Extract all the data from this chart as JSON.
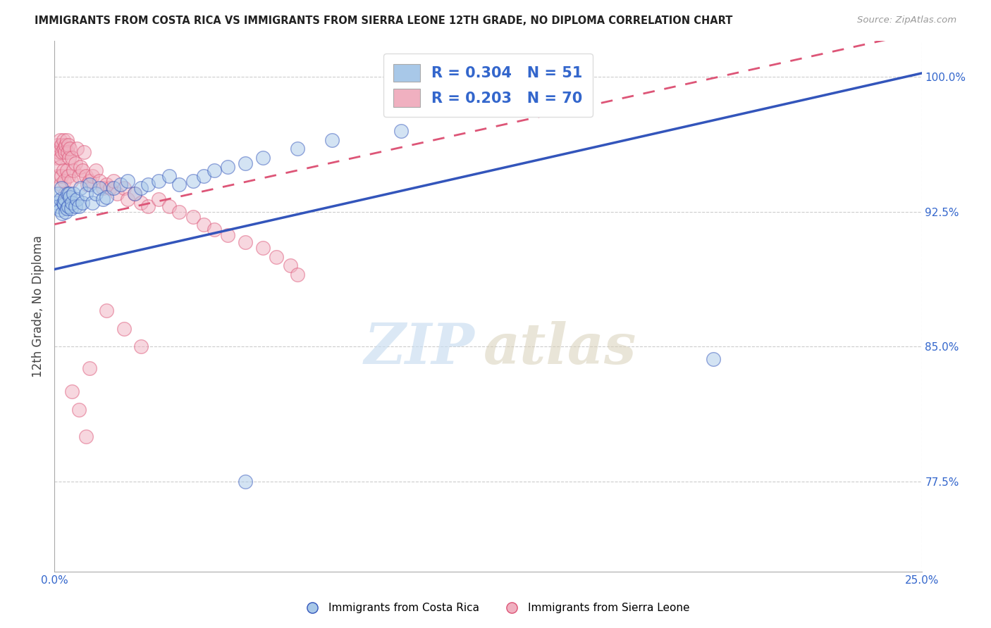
{
  "title": "IMMIGRANTS FROM COSTA RICA VS IMMIGRANTS FROM SIERRA LEONE 12TH GRADE, NO DIPLOMA CORRELATION CHART",
  "source": "Source: ZipAtlas.com",
  "ylabel": "12th Grade, No Diploma",
  "watermark_zip": "ZIP",
  "watermark_atlas": "atlas",
  "xlim": [
    0.0,
    0.25
  ],
  "ylim": [
    0.725,
    1.02
  ],
  "yticks": [
    0.775,
    0.85,
    0.925,
    1.0
  ],
  "ytick_labels": [
    "77.5%",
    "85.0%",
    "92.5%",
    "100.0%"
  ],
  "xtick_labels": [
    "0.0%",
    "",
    "",
    "",
    "",
    "25.0%"
  ],
  "legend_label1": "Immigrants from Costa Rica",
  "legend_label2": "Immigrants from Sierra Leone",
  "color_blue": "#a8c8e8",
  "color_pink": "#f0b0c0",
  "trend_blue": "#3355bb",
  "trend_pink": "#dd5577",
  "blue_line_x0": 0.0,
  "blue_line_y0": 0.893,
  "blue_line_x1": 0.25,
  "blue_line_y1": 1.002,
  "pink_line_x0": 0.0,
  "pink_line_y0": 0.918,
  "pink_line_x1": 0.25,
  "pink_line_y1": 1.025,
  "costa_rica_x": [
    0.0008,
    0.001,
    0.0012,
    0.0015,
    0.0018,
    0.002,
    0.0022,
    0.0025,
    0.0028,
    0.003,
    0.0032,
    0.0035,
    0.0038,
    0.004,
    0.0042,
    0.0045,
    0.0048,
    0.005,
    0.0055,
    0.006,
    0.0065,
    0.007,
    0.0075,
    0.008,
    0.009,
    0.01,
    0.011,
    0.012,
    0.013,
    0.014,
    0.015,
    0.017,
    0.019,
    0.021,
    0.023,
    0.025,
    0.027,
    0.03,
    0.033,
    0.036,
    0.04,
    0.043,
    0.046,
    0.05,
    0.055,
    0.06,
    0.07,
    0.08,
    0.1,
    0.19,
    0.055
  ],
  "costa_rica_y": [
    0.93,
    0.935,
    0.928,
    0.926,
    0.932,
    0.938,
    0.924,
    0.93,
    0.929,
    0.932,
    0.925,
    0.927,
    0.935,
    0.928,
    0.935,
    0.933,
    0.927,
    0.93,
    0.935,
    0.928,
    0.932,
    0.928,
    0.938,
    0.93,
    0.935,
    0.94,
    0.93,
    0.935,
    0.938,
    0.932,
    0.933,
    0.938,
    0.94,
    0.942,
    0.935,
    0.938,
    0.94,
    0.942,
    0.945,
    0.94,
    0.942,
    0.945,
    0.948,
    0.95,
    0.952,
    0.955,
    0.96,
    0.965,
    0.97,
    0.843,
    0.775
  ],
  "sierra_leone_x": [
    0.0005,
    0.0008,
    0.001,
    0.001,
    0.0012,
    0.0015,
    0.0015,
    0.0018,
    0.0018,
    0.002,
    0.002,
    0.0022,
    0.0025,
    0.0025,
    0.0028,
    0.0028,
    0.003,
    0.003,
    0.0032,
    0.0035,
    0.0035,
    0.0038,
    0.004,
    0.004,
    0.0042,
    0.0045,
    0.0048,
    0.005,
    0.0055,
    0.006,
    0.0065,
    0.007,
    0.0075,
    0.008,
    0.0085,
    0.009,
    0.0095,
    0.01,
    0.011,
    0.012,
    0.013,
    0.014,
    0.015,
    0.016,
    0.017,
    0.018,
    0.02,
    0.021,
    0.023,
    0.025,
    0.027,
    0.03,
    0.033,
    0.036,
    0.04,
    0.043,
    0.046,
    0.05,
    0.055,
    0.06,
    0.064,
    0.068,
    0.07,
    0.015,
    0.02,
    0.025,
    0.01,
    0.005,
    0.007,
    0.009
  ],
  "sierra_leone_y": [
    0.955,
    0.96,
    0.962,
    0.945,
    0.958,
    0.965,
    0.95,
    0.955,
    0.94,
    0.962,
    0.945,
    0.958,
    0.965,
    0.948,
    0.96,
    0.942,
    0.958,
    0.935,
    0.962,
    0.965,
    0.948,
    0.958,
    0.962,
    0.945,
    0.955,
    0.96,
    0.942,
    0.955,
    0.948,
    0.952,
    0.96,
    0.945,
    0.95,
    0.948,
    0.958,
    0.945,
    0.94,
    0.942,
    0.945,
    0.948,
    0.942,
    0.938,
    0.94,
    0.938,
    0.942,
    0.935,
    0.938,
    0.932,
    0.935,
    0.93,
    0.928,
    0.932,
    0.928,
    0.925,
    0.922,
    0.918,
    0.915,
    0.912,
    0.908,
    0.905,
    0.9,
    0.895,
    0.89,
    0.87,
    0.86,
    0.85,
    0.838,
    0.825,
    0.815,
    0.8
  ]
}
